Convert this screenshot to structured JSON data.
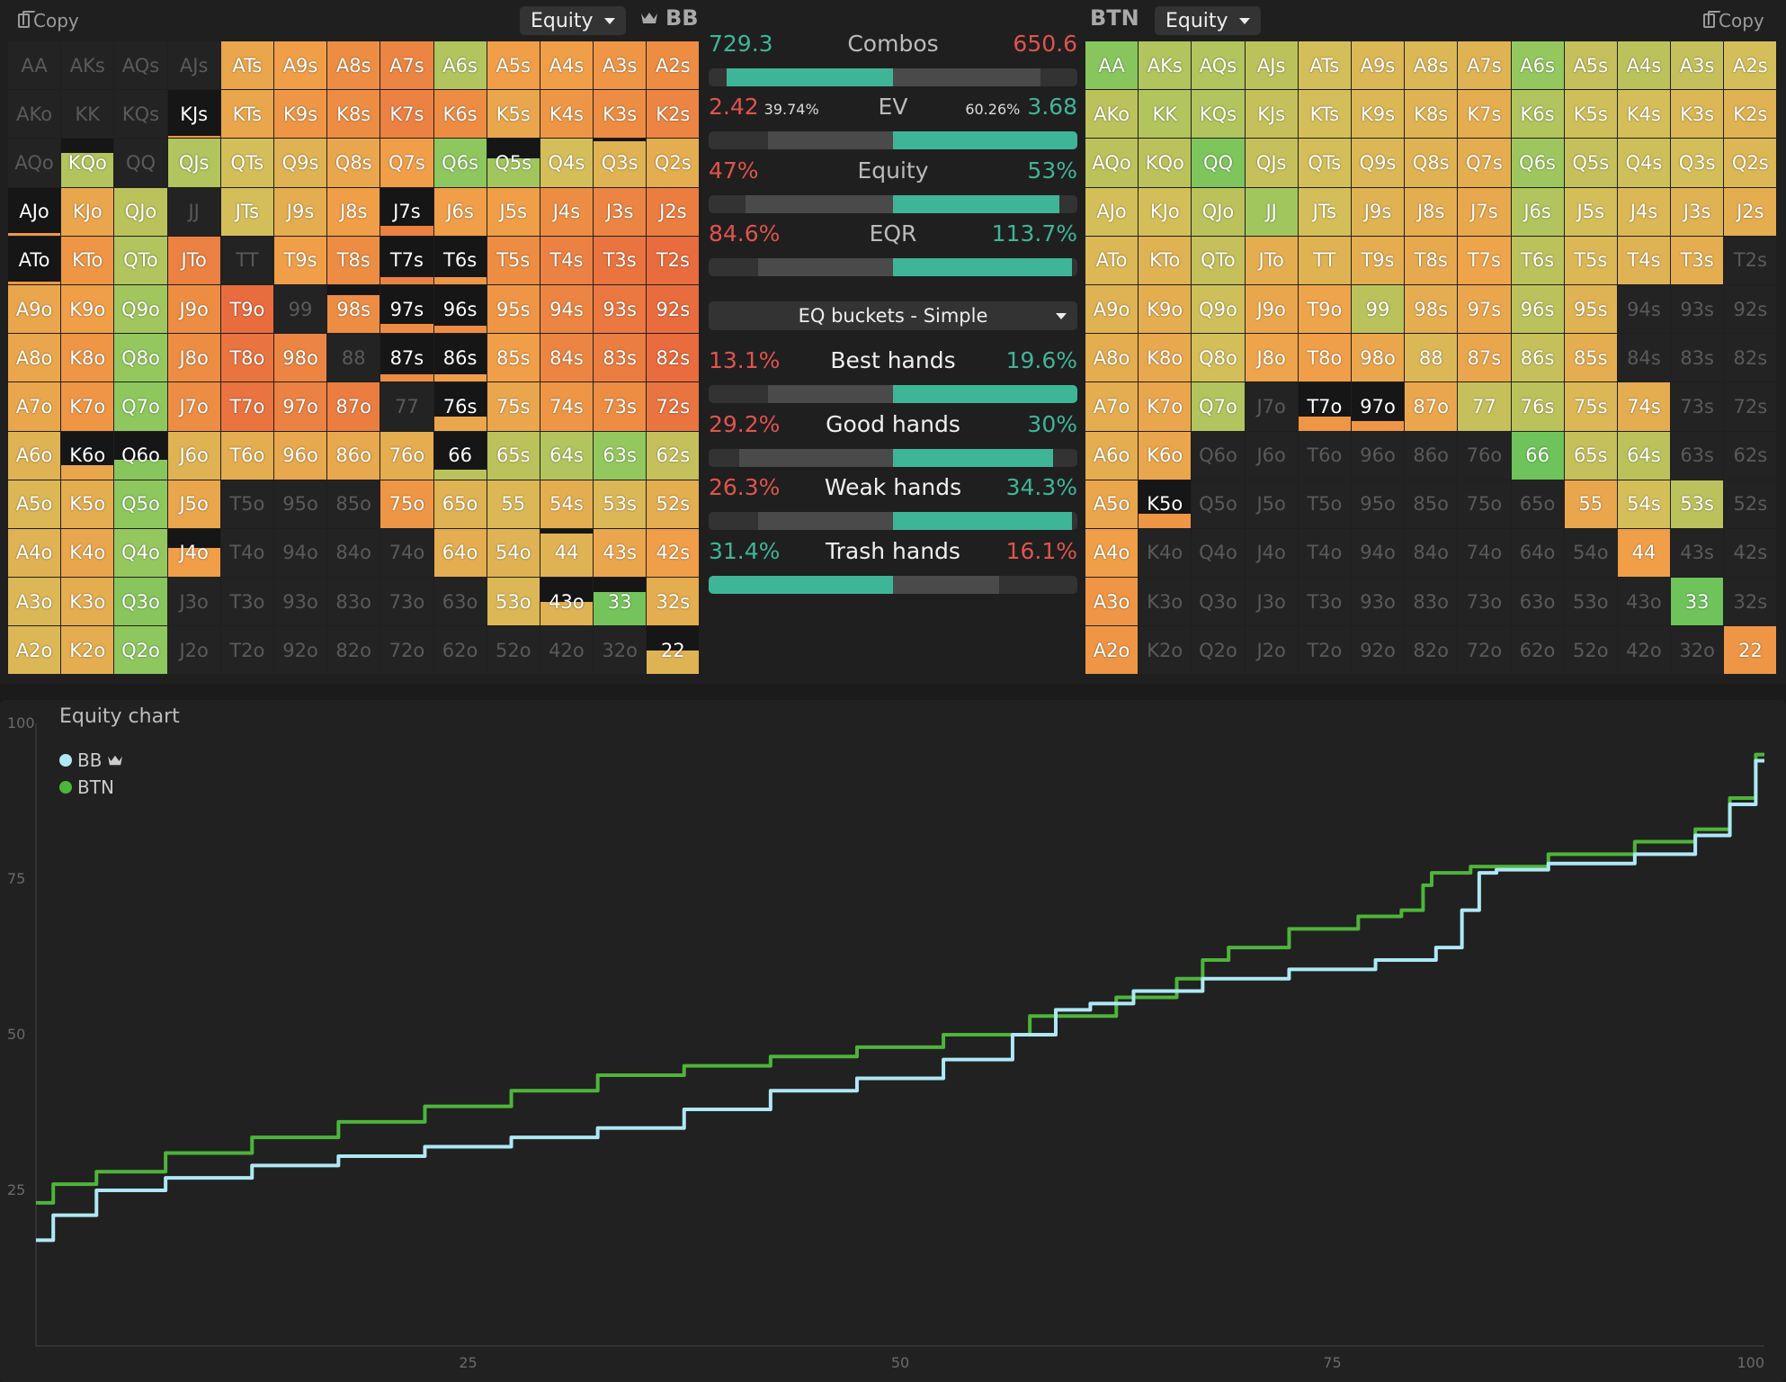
{
  "left": {
    "copy_label": "Copy",
    "dropdown_value": "Equity",
    "player": "BB",
    "grid": [
      [
        "AA",
        "AKs",
        "AQs",
        "AJs",
        "ATs",
        "A9s",
        "A8s",
        "A7s",
        "A6s",
        "A5s",
        "A4s",
        "A3s",
        "A2s"
      ],
      [
        "AKo",
        "KK",
        "KQs",
        "KJs",
        "KTs",
        "K9s",
        "K8s",
        "K7s",
        "K6s",
        "K5s",
        "K4s",
        "K3s",
        "K2s"
      ],
      [
        "AQo",
        "KQo",
        "QQ",
        "QJs",
        "QTs",
        "Q9s",
        "Q8s",
        "Q7s",
        "Q6s",
        "Q5s",
        "Q4s",
        "Q3s",
        "Q2s"
      ],
      [
        "AJo",
        "KJo",
        "QJo",
        "JJ",
        "JTs",
        "J9s",
        "J8s",
        "J7s",
        "J6s",
        "J5s",
        "J4s",
        "J3s",
        "J2s"
      ],
      [
        "ATo",
        "KTo",
        "QTo",
        "JTo",
        "TT",
        "T9s",
        "T8s",
        "T7s",
        "T6s",
        "T5s",
        "T4s",
        "T3s",
        "T2s"
      ],
      [
        "A9o",
        "K9o",
        "Q9o",
        "J9o",
        "T9o",
        "99",
        "98s",
        "97s",
        "96s",
        "95s",
        "94s",
        "93s",
        "92s"
      ],
      [
        "A8o",
        "K8o",
        "Q8o",
        "J8o",
        "T8o",
        "98o",
        "88",
        "87s",
        "86s",
        "85s",
        "84s",
        "83s",
        "82s"
      ],
      [
        "A7o",
        "K7o",
        "Q7o",
        "J7o",
        "T7o",
        "97o",
        "87o",
        "77",
        "76s",
        "75s",
        "74s",
        "73s",
        "72s"
      ],
      [
        "A6o",
        "K6o",
        "Q6o",
        "J6o",
        "T6o",
        "96o",
        "86o",
        "76o",
        "66",
        "65s",
        "64s",
        "63s",
        "62s"
      ],
      [
        "A5o",
        "K5o",
        "Q5o",
        "J5o",
        "T5o",
        "95o",
        "85o",
        "75o",
        "65o",
        "55",
        "54s",
        "53s",
        "52s"
      ],
      [
        "A4o",
        "K4o",
        "Q4o",
        "J4o",
        "T4o",
        "94o",
        "84o",
        "74o",
        "64o",
        "54o",
        "44",
        "43s",
        "42s"
      ],
      [
        "A3o",
        "K3o",
        "Q3o",
        "J3o",
        "T3o",
        "93o",
        "83o",
        "73o",
        "63o",
        "53o",
        "43o",
        "33",
        "32s"
      ],
      [
        "A2o",
        "K2o",
        "Q2o",
        "J2o",
        "T2o",
        "92o",
        "82o",
        "72o",
        "62o",
        "52o",
        "42o",
        "32o",
        "22"
      ]
    ],
    "freq": [
      [
        0,
        0,
        0,
        0,
        1,
        1,
        1,
        1,
        1,
        1,
        1,
        1,
        1
      ],
      [
        0,
        0,
        0,
        0.05,
        1,
        1,
        1,
        1,
        1,
        1,
        1,
        1,
        1
      ],
      [
        0,
        0.7,
        0,
        1,
        1,
        1,
        1,
        1,
        1,
        0.6,
        1,
        0.95,
        1
      ],
      [
        0.05,
        1,
        1,
        0,
        1,
        1,
        1,
        0.2,
        1,
        1,
        1,
        1,
        1
      ],
      [
        0.05,
        1,
        1,
        1,
        0,
        1,
        1,
        0.15,
        0.15,
        1,
        1,
        1,
        1
      ],
      [
        1,
        1,
        1,
        1,
        1,
        0,
        0.8,
        0.2,
        0.15,
        1,
        1,
        1,
        1
      ],
      [
        1,
        1,
        1,
        1,
        1,
        1,
        0,
        0.15,
        0.15,
        1,
        1,
        1,
        1
      ],
      [
        1,
        1,
        1,
        1,
        1,
        1,
        1,
        0,
        0.3,
        1,
        1,
        1,
        1
      ],
      [
        1,
        0.3,
        0.4,
        1,
        1,
        1,
        1,
        1,
        0.2,
        1,
        1,
        1,
        1
      ],
      [
        1,
        1,
        1,
        1,
        0,
        0,
        0,
        1,
        1,
        1,
        1,
        1,
        1
      ],
      [
        1,
        1,
        1,
        0.6,
        0,
        0,
        0,
        0,
        1,
        1,
        0.9,
        1,
        1
      ],
      [
        1,
        1,
        1,
        0,
        0,
        0,
        0,
        0,
        0,
        1,
        0.5,
        0.7,
        1
      ],
      [
        1,
        1,
        1,
        0,
        0,
        0,
        0,
        0,
        0,
        0,
        0,
        0,
        0.5
      ]
    ],
    "eq": [
      [
        0,
        0,
        0,
        0,
        0.45,
        0.42,
        0.38,
        0.36,
        0.62,
        0.42,
        0.42,
        0.4,
        0.38
      ],
      [
        0,
        0,
        0,
        0.4,
        0.45,
        0.4,
        0.38,
        0.35,
        0.38,
        0.45,
        0.4,
        0.38,
        0.36
      ],
      [
        0,
        0.62,
        0,
        0.62,
        0.55,
        0.5,
        0.45,
        0.42,
        0.7,
        0.65,
        0.55,
        0.5,
        0.48
      ],
      [
        0.4,
        0.45,
        0.6,
        0,
        0.55,
        0.48,
        0.42,
        0.35,
        0.42,
        0.42,
        0.38,
        0.36,
        0.34
      ],
      [
        0.4,
        0.4,
        0.62,
        0.35,
        0,
        0.42,
        0.38,
        0.35,
        0.4,
        0.38,
        0.35,
        0.32,
        0.3
      ],
      [
        0.45,
        0.42,
        0.65,
        0.38,
        0.3,
        0,
        0.38,
        0.38,
        0.38,
        0.4,
        0.36,
        0.33,
        0.3
      ],
      [
        0.45,
        0.4,
        0.68,
        0.38,
        0.32,
        0.36,
        0,
        0.38,
        0.42,
        0.42,
        0.36,
        0.34,
        0.3
      ],
      [
        0.45,
        0.4,
        0.7,
        0.38,
        0.32,
        0.35,
        0.34,
        0,
        0.45,
        0.45,
        0.4,
        0.38,
        0.32
      ],
      [
        0.5,
        0.45,
        0.72,
        0.5,
        0.48,
        0.46,
        0.46,
        0.48,
        0.6,
        0.6,
        0.62,
        0.68,
        0.58
      ],
      [
        0.52,
        0.48,
        0.7,
        0.45,
        0,
        0,
        0,
        0.4,
        0.5,
        0.52,
        0.48,
        0.52,
        0.48
      ],
      [
        0.5,
        0.45,
        0.68,
        0.42,
        0,
        0,
        0,
        0,
        0.48,
        0.5,
        0.5,
        0.45,
        0.42
      ],
      [
        0.52,
        0.48,
        0.72,
        0,
        0,
        0,
        0,
        0,
        0,
        0.52,
        0.5,
        0.78,
        0.48
      ],
      [
        0.52,
        0.48,
        0.7,
        0,
        0,
        0,
        0,
        0,
        0,
        0,
        0,
        0,
        0.5
      ]
    ]
  },
  "right": {
    "copy_label": "Copy",
    "dropdown_value": "Equity",
    "player": "BTN",
    "grid": [
      [
        "AA",
        "AKs",
        "AQs",
        "AJs",
        "ATs",
        "A9s",
        "A8s",
        "A7s",
        "A6s",
        "A5s",
        "A4s",
        "A3s",
        "A2s"
      ],
      [
        "AKo",
        "KK",
        "KQs",
        "KJs",
        "KTs",
        "K9s",
        "K8s",
        "K7s",
        "K6s",
        "K5s",
        "K4s",
        "K3s",
        "K2s"
      ],
      [
        "AQo",
        "KQo",
        "QQ",
        "QJs",
        "QTs",
        "Q9s",
        "Q8s",
        "Q7s",
        "Q6s",
        "Q5s",
        "Q4s",
        "Q3s",
        "Q2s"
      ],
      [
        "AJo",
        "KJo",
        "QJo",
        "JJ",
        "JTs",
        "J9s",
        "J8s",
        "J7s",
        "J6s",
        "J5s",
        "J4s",
        "J3s",
        "J2s"
      ],
      [
        "ATo",
        "KTo",
        "QTo",
        "JTo",
        "TT",
        "T9s",
        "T8s",
        "T7s",
        "T6s",
        "T5s",
        "T4s",
        "T3s",
        "T2s"
      ],
      [
        "A9o",
        "K9o",
        "Q9o",
        "J9o",
        "T9o",
        "99",
        "98s",
        "97s",
        "96s",
        "95s",
        "94s",
        "93s",
        "92s"
      ],
      [
        "A8o",
        "K8o",
        "Q8o",
        "J8o",
        "T8o",
        "98o",
        "88",
        "87s",
        "86s",
        "85s",
        "84s",
        "83s",
        "82s"
      ],
      [
        "A7o",
        "K7o",
        "Q7o",
        "J7o",
        "T7o",
        "97o",
        "87o",
        "77",
        "76s",
        "75s",
        "74s",
        "73s",
        "72s"
      ],
      [
        "A6o",
        "K6o",
        "Q6o",
        "J6o",
        "T6o",
        "96o",
        "86o",
        "76o",
        "66",
        "65s",
        "64s",
        "63s",
        "62s"
      ],
      [
        "A5o",
        "K5o",
        "Q5o",
        "J5o",
        "T5o",
        "95o",
        "85o",
        "75o",
        "65o",
        "55",
        "54s",
        "53s",
        "52s"
      ],
      [
        "A4o",
        "K4o",
        "Q4o",
        "J4o",
        "T4o",
        "94o",
        "84o",
        "74o",
        "64o",
        "54o",
        "44",
        "43s",
        "42s"
      ],
      [
        "A3o",
        "K3o",
        "Q3o",
        "J3o",
        "T3o",
        "93o",
        "83o",
        "73o",
        "63o",
        "53o",
        "43o",
        "33",
        "32s"
      ],
      [
        "A2o",
        "K2o",
        "Q2o",
        "J2o",
        "T2o",
        "92o",
        "82o",
        "72o",
        "62o",
        "52o",
        "42o",
        "32o",
        "22"
      ]
    ],
    "freq": [
      [
        1,
        1,
        1,
        1,
        1,
        1,
        1,
        1,
        1,
        1,
        1,
        1,
        1
      ],
      [
        1,
        1,
        1,
        1,
        1,
        1,
        1,
        1,
        1,
        1,
        1,
        1,
        1
      ],
      [
        1,
        1,
        1,
        1,
        1,
        1,
        1,
        1,
        1,
        1,
        1,
        1,
        1
      ],
      [
        1,
        1,
        1,
        1,
        1,
        1,
        1,
        1,
        1,
        1,
        1,
        1,
        1
      ],
      [
        1,
        1,
        1,
        1,
        1,
        1,
        1,
        1,
        1,
        1,
        1,
        1,
        0
      ],
      [
        1,
        1,
        1,
        1,
        1,
        1,
        1,
        1,
        1,
        1,
        0,
        0,
        0
      ],
      [
        1,
        1,
        1,
        1,
        1,
        1,
        1,
        1,
        1,
        1,
        0,
        0,
        0
      ],
      [
        1,
        1,
        1,
        0,
        0.3,
        0.2,
        1,
        1,
        1,
        1,
        1,
        0,
        0
      ],
      [
        1,
        1,
        0,
        0,
        0,
        0,
        0,
        0,
        1,
        1,
        1,
        0,
        0
      ],
      [
        1,
        0.3,
        0,
        0,
        0,
        0,
        0,
        0,
        0,
        1,
        1,
        1,
        0
      ],
      [
        1,
        0,
        0,
        0,
        0,
        0,
        0,
        0,
        0,
        0,
        1,
        0,
        0
      ],
      [
        1,
        0,
        0,
        0,
        0,
        0,
        0,
        0,
        0,
        0,
        0,
        1,
        0
      ],
      [
        1,
        0,
        0,
        0,
        0,
        0,
        0,
        0,
        0,
        0,
        0,
        0,
        1
      ]
    ],
    "eq": [
      [
        0.72,
        0.62,
        0.62,
        0.6,
        0.55,
        0.52,
        0.52,
        0.5,
        0.68,
        0.58,
        0.6,
        0.58,
        0.55
      ],
      [
        0.6,
        0.62,
        0.62,
        0.58,
        0.55,
        0.52,
        0.5,
        0.48,
        0.62,
        0.56,
        0.55,
        0.52,
        0.5
      ],
      [
        0.6,
        0.6,
        0.75,
        0.58,
        0.55,
        0.52,
        0.5,
        0.48,
        0.66,
        0.58,
        0.56,
        0.55,
        0.52
      ],
      [
        0.55,
        0.55,
        0.6,
        0.65,
        0.55,
        0.5,
        0.48,
        0.46,
        0.62,
        0.55,
        0.52,
        0.5,
        0.48
      ],
      [
        0.52,
        0.5,
        0.58,
        0.48,
        0.5,
        0.48,
        0.46,
        0.44,
        0.6,
        0.52,
        0.5,
        0.48,
        0
      ],
      [
        0.5,
        0.48,
        0.56,
        0.45,
        0.44,
        0.6,
        0.48,
        0.45,
        0.6,
        0.5,
        0,
        0,
        0
      ],
      [
        0.48,
        0.46,
        0.55,
        0.44,
        0.42,
        0.45,
        0.52,
        0.45,
        0.58,
        0.48,
        0,
        0,
        0
      ],
      [
        0.48,
        0.45,
        0.62,
        0,
        0.4,
        0.4,
        0.45,
        0.58,
        0.6,
        0.52,
        0.48,
        0,
        0
      ],
      [
        0.48,
        0.45,
        0,
        0,
        0,
        0,
        0,
        0,
        0.8,
        0.58,
        0.6,
        0,
        0
      ],
      [
        0.45,
        0.4,
        0,
        0,
        0,
        0,
        0,
        0,
        0,
        0.45,
        0.55,
        0.6,
        0
      ],
      [
        0.42,
        0,
        0,
        0,
        0,
        0,
        0,
        0,
        0,
        0,
        0.42,
        0,
        0
      ],
      [
        0.4,
        0,
        0,
        0,
        0,
        0,
        0,
        0,
        0,
        0,
        0,
        0.8,
        0
      ],
      [
        0.4,
        0,
        0,
        0,
        0,
        0,
        0,
        0,
        0,
        0,
        0,
        0,
        0.4
      ]
    ]
  },
  "stats": [
    {
      "left": "729.3",
      "label": "Combos",
      "right": "650.6",
      "left_color": "green",
      "right_color": "red",
      "bar": {
        "left": 0.53,
        "right": 0.47,
        "winner": "left"
      }
    },
    {
      "left": "2.42",
      "left_small": "39.74%",
      "label": "EV",
      "right_small": "60.26%",
      "right": "3.68",
      "left_color": "red",
      "right_color": "green",
      "bar": {
        "left": 0.4,
        "right": 0.6,
        "winner": "right"
      }
    },
    {
      "left": "47%",
      "label": "Equity",
      "right": "53%",
      "left_color": "red",
      "right_color": "green",
      "bar": {
        "left": 0.47,
        "right": 0.53,
        "winner": "right"
      }
    },
    {
      "left": "84.6%",
      "label": "EQR",
      "right": "113.7%",
      "left_color": "red",
      "right_color": "green",
      "bar": {
        "left": 0.43,
        "right": 0.57,
        "winner": "right"
      }
    }
  ],
  "bucket_select": "EQ buckets - Simple",
  "buckets": [
    {
      "left": "13.1%",
      "label": "Best hands",
      "right": "19.6%",
      "left_color": "red",
      "right_color": "green",
      "bar": {
        "left": 0.4,
        "right": 0.6,
        "winner": "right"
      }
    },
    {
      "left": "29.2%",
      "label": "Good hands",
      "right": "30%",
      "left_color": "red",
      "right_color": "green",
      "bar": {
        "left": 0.49,
        "right": 0.51,
        "winner": "right"
      }
    },
    {
      "left": "26.3%",
      "label": "Weak hands",
      "right": "34.3%",
      "left_color": "red",
      "right_color": "green",
      "bar": {
        "left": 0.43,
        "right": 0.57,
        "winner": "right"
      }
    },
    {
      "left": "31.4%",
      "label": "Trash hands",
      "right": "16.1%",
      "left_color": "green",
      "right_color": "red",
      "bar": {
        "left": 0.66,
        "right": 0.34,
        "winner": "left"
      }
    }
  ],
  "colors": {
    "green": "#3fb597",
    "red": "#e0534d",
    "bb_line": "#aee8f5",
    "btn_line": "#4db53a",
    "bar_win": "#3fb597",
    "bar_bg": "#333333",
    "bar_mid": "#4a4a4a"
  },
  "chart": {
    "title": "Equity chart",
    "legend": [
      {
        "name": "BB",
        "color": "#aee8f5",
        "crown": true
      },
      {
        "name": "BTN",
        "color": "#4db53a",
        "crown": false
      }
    ]
  },
  "chart_data": {
    "type": "line",
    "title": "Equity chart",
    "xlim": [
      0,
      100
    ],
    "ylim": [
      0,
      100
    ],
    "x_ticks": [
      "25",
      "50",
      "75",
      "100"
    ],
    "y_ticks": [
      "100",
      "75",
      "50",
      "25"
    ],
    "grid": false,
    "legend_position": "top-left",
    "series": [
      {
        "name": "BB",
        "x": [
          0,
          2,
          5,
          10,
          15,
          20,
          25,
          30,
          35,
          40,
          45,
          50,
          55,
          58,
          60,
          62,
          65,
          70,
          75,
          80,
          82,
          83,
          84,
          85,
          90,
          95,
          97,
          99,
          100
        ],
        "y": [
          17,
          21,
          25,
          27,
          29,
          30.5,
          32,
          33.5,
          35,
          38,
          41,
          43,
          46,
          50,
          54,
          55,
          57,
          59,
          60.5,
          62,
          64,
          70,
          76,
          76.5,
          77.5,
          79,
          82,
          87,
          94
        ]
      },
      {
        "name": "BTN",
        "x": [
          0,
          2,
          5,
          10,
          15,
          20,
          25,
          30,
          35,
          40,
          45,
          50,
          55,
          60,
          65,
          67,
          68,
          70,
          75,
          78,
          80,
          80.5,
          81,
          85,
          90,
          95,
          97,
          99,
          100
        ],
        "y": [
          23,
          26,
          28,
          31,
          33.5,
          36,
          38.5,
          41,
          43.5,
          45,
          46.5,
          48,
          50,
          53,
          56,
          59,
          62,
          64,
          67,
          69,
          70,
          74,
          76,
          77,
          79,
          81,
          83,
          88,
          95
        ]
      }
    ]
  }
}
